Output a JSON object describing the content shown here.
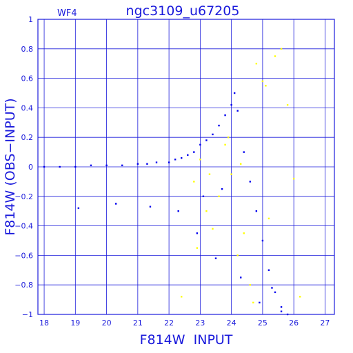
{
  "chart_data": {
    "type": "scatter",
    "title": "ngc3109_u67205",
    "panel_label": "WF4",
    "xlabel": "F814W  INPUT",
    "ylabel": "F814W (OBS−INPUT)",
    "xlim": [
      17.8,
      27.3
    ],
    "ylim": [
      -1,
      1
    ],
    "x_ticks": [
      18,
      19,
      20,
      21,
      22,
      23,
      24,
      25,
      26,
      27
    ],
    "y_ticks": [
      -1,
      -0.8,
      -0.6,
      -0.4,
      -0.2,
      0,
      0.2,
      0.4,
      0.6,
      0.8,
      1
    ],
    "x_tick_labels": [
      "18",
      "19",
      "20",
      "21",
      "22",
      "23",
      "24",
      "25",
      "26",
      "27"
    ],
    "y_tick_labels": [
      "−1",
      "−0.8",
      "−0.6",
      "−0.4",
      "−0.2",
      "0",
      "0.2",
      "0.4",
      "0.6",
      "0.8",
      "1"
    ],
    "grid": true,
    "series": [
      {
        "color": "#0000ee",
        "x": [
          18.0,
          18.5,
          19.0,
          19.5,
          20.0,
          20.5,
          21.0,
          21.3,
          21.6,
          22.0,
          22.2,
          22.4,
          22.6,
          22.8,
          23.0,
          23.2,
          23.4,
          23.6,
          23.8,
          24.0,
          24.1,
          24.2,
          24.4,
          24.6,
          24.8,
          25.0,
          25.2,
          25.4,
          25.6,
          25.8,
          19.1,
          20.3,
          21.4,
          22.3,
          22.9,
          23.5,
          24.3,
          24.9,
          25.3,
          25.6,
          23.7,
          23.1
        ],
        "y": [
          0.0,
          0.0,
          0.0,
          0.01,
          0.01,
          0.01,
          0.02,
          0.02,
          0.03,
          0.03,
          0.05,
          0.06,
          0.08,
          0.1,
          0.15,
          0.18,
          0.22,
          0.28,
          0.35,
          0.42,
          0.5,
          0.38,
          0.1,
          -0.1,
          -0.3,
          -0.5,
          -0.7,
          -0.85,
          -0.95,
          -1.0,
          -0.28,
          -0.25,
          -0.27,
          -0.3,
          -0.45,
          -0.62,
          -0.75,
          -0.92,
          -0.82,
          -0.98,
          -0.15,
          -0.2
        ]
      },
      {
        "color": "#ffff00",
        "x": [
          22.4,
          22.8,
          23.0,
          23.2,
          23.4,
          23.6,
          23.8,
          24.0,
          24.2,
          24.4,
          24.6,
          24.8,
          25.0,
          25.2,
          25.4,
          25.6,
          25.8,
          26.0,
          26.2,
          24.7,
          25.1,
          23.9,
          24.3,
          22.9,
          23.3
        ],
        "y": [
          -0.88,
          -0.1,
          0.05,
          -0.3,
          -0.42,
          -0.2,
          0.15,
          -0.05,
          -0.6,
          -0.45,
          -0.8,
          0.7,
          0.58,
          -0.35,
          0.75,
          0.8,
          0.42,
          -0.08,
          -0.88,
          -0.92,
          0.55,
          0.2,
          0.02,
          -0.55,
          -0.05
        ]
      }
    ]
  }
}
